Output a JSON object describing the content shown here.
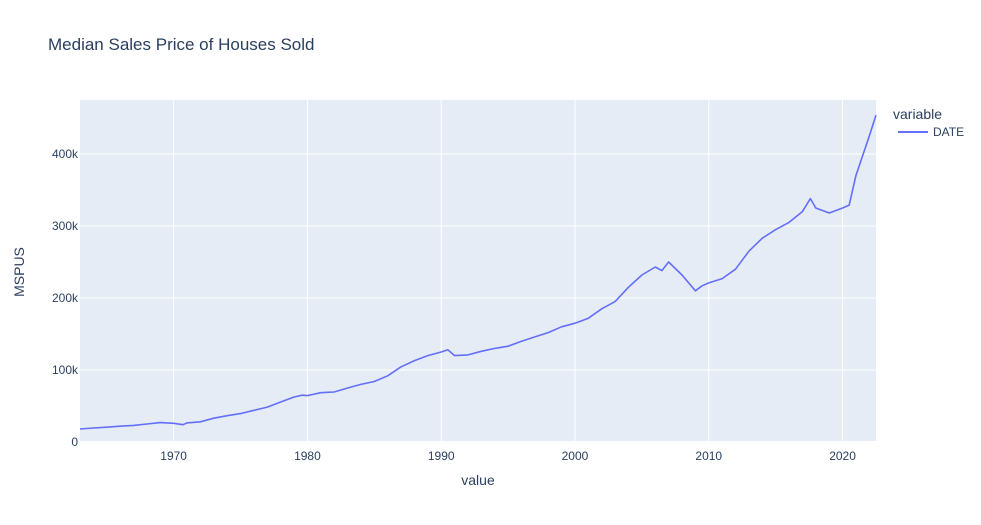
{
  "chart_data": {
    "type": "line",
    "title": "Median Sales Price of Houses Sold",
    "xlabel": "value",
    "ylabel": "MSPUS",
    "xlim": [
      1963,
      2022.5
    ],
    "ylim": [
      0,
      475000
    ],
    "x_ticks": [
      1970,
      1980,
      1990,
      2000,
      2010,
      2020
    ],
    "y_ticks": [
      0,
      100000,
      200000,
      300000,
      400000
    ],
    "y_tick_labels": [
      "0",
      "100k",
      "200k",
      "300k",
      "400k"
    ],
    "legend_title": "variable",
    "legend_position": "top-right",
    "grid": true,
    "colors": {
      "line": "#636efa",
      "plot_bg": "#e5ecf6",
      "grid": "#ffffff",
      "text": "#2a3f5f"
    },
    "series": [
      {
        "name": "DATE",
        "x": [
          1963,
          1964,
          1965,
          1966,
          1967,
          1968,
          1969,
          1970,
          1970.7,
          1971,
          1972,
          1973,
          1974,
          1975,
          1976,
          1977,
          1978,
          1979,
          1979.6,
          1980,
          1981,
          1981.5,
          1982,
          1983,
          1984,
          1985,
          1986,
          1987,
          1988,
          1989,
          1990,
          1990.5,
          1991,
          1992,
          1993,
          1994,
          1995,
          1996,
          1997,
          1998,
          1999,
          2000,
          2001,
          2002,
          2003,
          2004,
          2005,
          2006,
          2006.5,
          2007,
          2008,
          2009,
          2009.5,
          2010,
          2011,
          2012,
          2013,
          2014,
          2015,
          2016,
          2017,
          2017.6,
          2018,
          2019,
          2020,
          2020.5,
          2021,
          2022,
          2022.5
        ],
        "y": [
          18000,
          19500,
          20500,
          22000,
          23000,
          25000,
          27000,
          26000,
          24000,
          26500,
          28000,
          33000,
          36500,
          39500,
          44000,
          48500,
          55500,
          62500,
          65000,
          64500,
          68500,
          69000,
          69500,
          75000,
          80000,
          84000,
          92000,
          104500,
          113000,
          120000,
          125000,
          128000,
          120000,
          121000,
          126000,
          130000,
          133000,
          140000,
          146000,
          152000,
          160000,
          165000,
          172000,
          185000,
          195000,
          215000,
          232000,
          243000,
          238000,
          250000,
          232000,
          210000,
          217000,
          221000,
          227000,
          240000,
          265000,
          283000,
          295000,
          305000,
          320000,
          338000,
          325000,
          318000,
          325000,
          329000,
          370000,
          425000,
          454000
        ]
      }
    ]
  }
}
